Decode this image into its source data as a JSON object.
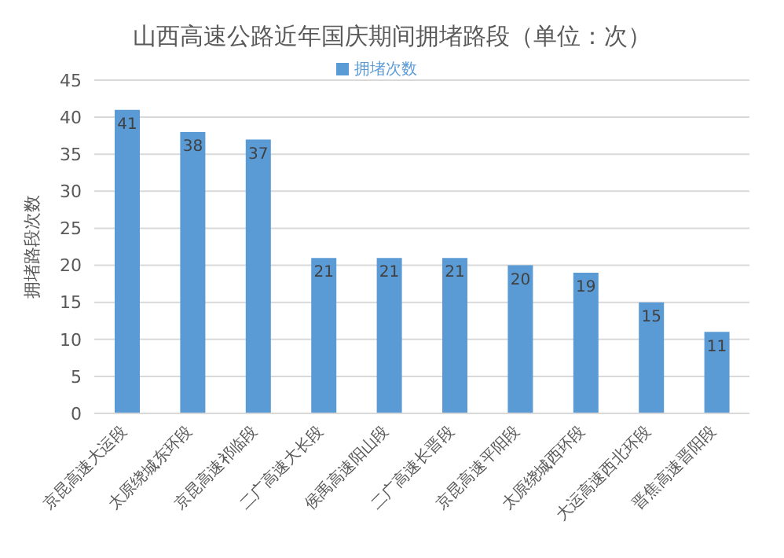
{
  "chart_data": {
    "type": "bar",
    "title": "山西高速公路近年国庆期间拥堵路段（单位：次）",
    "ylabel": "拥堵路段次数",
    "categories": [
      "京昆高速大运段",
      "太原绕城东环段",
      "京昆高速祁临段",
      "二广高速大长段",
      "侯禹高速阳山段",
      "二广高速长晋段",
      "京昆高速平阳段",
      "太原绕城西环段",
      "大运高速西北环段",
      "晋焦高速晋阳段"
    ],
    "series": [
      {
        "name": "拥堵次数",
        "color": "#5b9bd5",
        "values": [
          41,
          38,
          37,
          21,
          21,
          21,
          20,
          19,
          15,
          11
        ]
      }
    ],
    "ylim": [
      0,
      45
    ],
    "yticks": [
      0,
      5,
      10,
      15,
      20,
      25,
      30,
      35,
      40,
      45
    ],
    "grid": "y",
    "legend": "top",
    "data_labels": true
  }
}
